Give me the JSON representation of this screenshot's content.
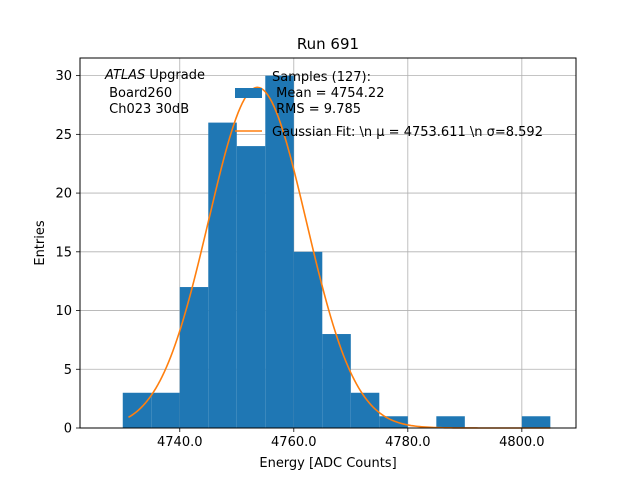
{
  "chart_data": {
    "type": "bar",
    "title": "Run 691",
    "xlabel": "Energy [ADC Counts]",
    "ylabel": "Entries",
    "xlim": [
      4722.5,
      4809.5
    ],
    "ylim": [
      0,
      31.5
    ],
    "grid": true,
    "legend_placement": "top-right",
    "xticks": [
      4740,
      4760,
      4780,
      4800
    ],
    "xtick_labels": [
      "4740.0",
      "4760.0",
      "4780.0",
      "4800.0"
    ],
    "yticks": [
      0,
      5,
      10,
      15,
      20,
      25,
      30
    ],
    "ytick_labels": [
      "0",
      "5",
      "10",
      "15",
      "20",
      "25",
      "30"
    ],
    "annotation_lines": [
      "ATLAS Upgrade",
      " Board260",
      " Ch023 30dB"
    ],
    "series": [
      {
        "name": "Samples (127):\n Mean = 4754.22\n RMS = 9.785",
        "type": "histogram",
        "color": "#1f77b4",
        "bin_edges": [
          4730,
          4735,
          4740,
          4745,
          4750,
          4755,
          4760,
          4765,
          4770,
          4775,
          4780,
          4785,
          4790,
          4795,
          4800,
          4805
        ],
        "counts": [
          3,
          3,
          12,
          26,
          24,
          30,
          15,
          8,
          3,
          1,
          0,
          1,
          0,
          0,
          1
        ]
      },
      {
        "name": "Gaussian Fit: \\n $\\mu$ = 4753.611 \\n $\\sigma$=8.592",
        "type": "line",
        "color": "#ff7f0e",
        "mu": 4753.611,
        "sigma": 8.592,
        "amplitude": 29,
        "x_range": [
          4731,
          4805
        ]
      }
    ],
    "legend": {
      "hist_lines": [
        "Samples (127):",
        " Mean = 4754.22",
        " RMS = 9.785"
      ],
      "fit_label": "Gaussian Fit: \\n μ = 4753.611 \\n σ=8.592"
    }
  }
}
